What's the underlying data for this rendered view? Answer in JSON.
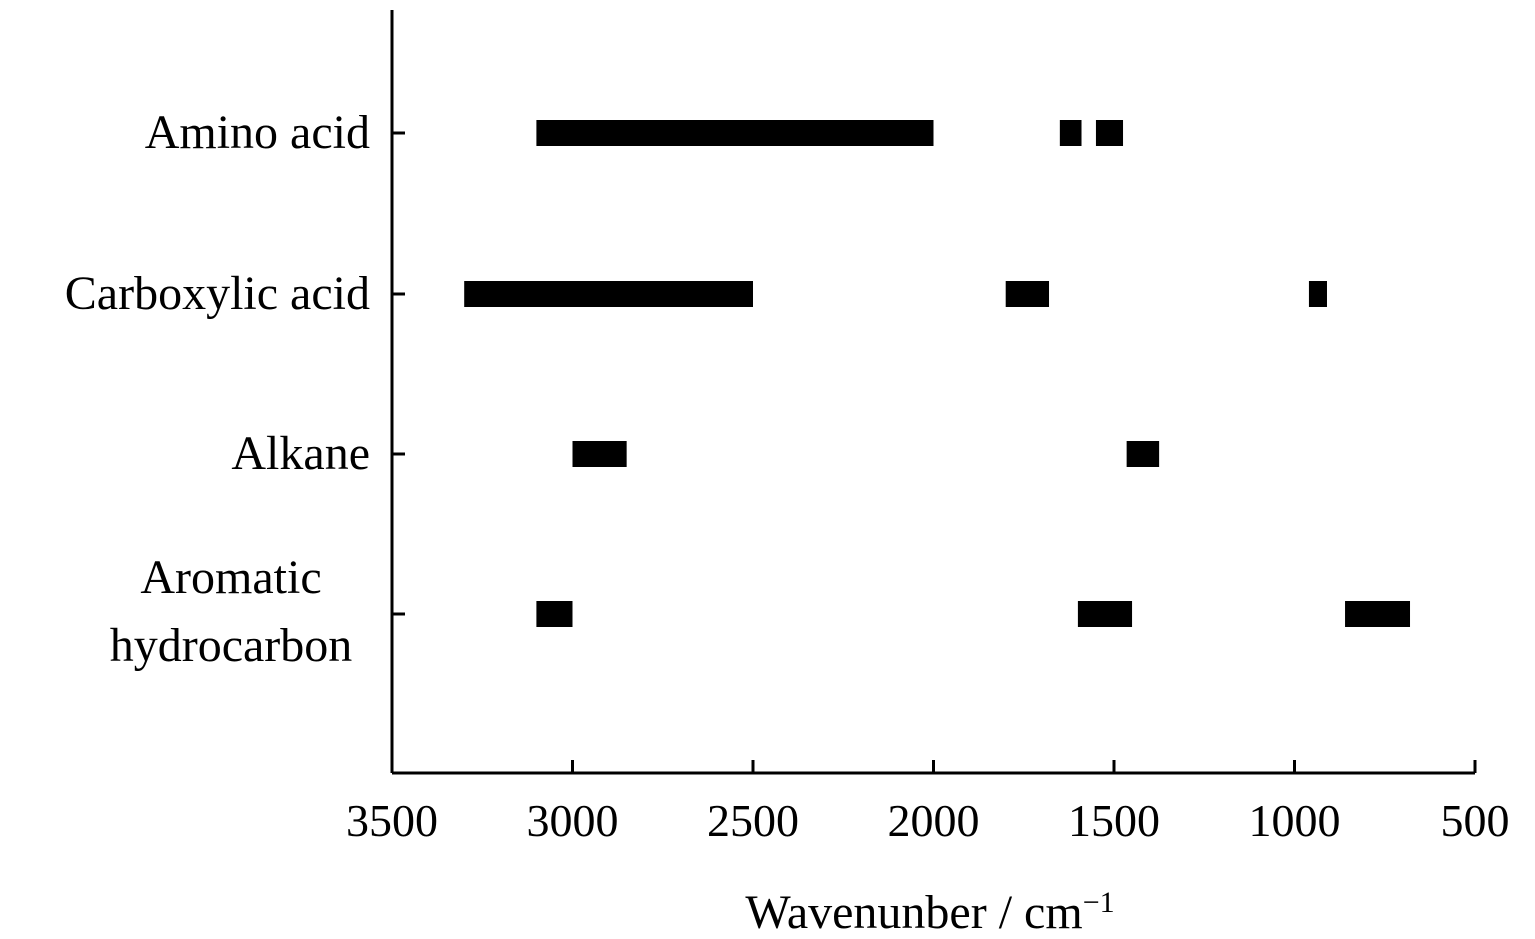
{
  "chart_data": {
    "type": "bar",
    "orientation": "horizontal-range",
    "title": "",
    "xlabel": "Wavenunber / cm",
    "xlabel_superscript": "−1",
    "ylabel": "",
    "xlim": [
      3500,
      500
    ],
    "x_reversed": true,
    "xticks": [
      3500,
      3000,
      2500,
      2000,
      1500,
      1000,
      500
    ],
    "grid": false,
    "legend": "none",
    "bar_color": "#000000",
    "categories": [
      {
        "lines": [
          "Amino acid"
        ],
        "ranges": [
          [
            3100,
            2000
          ],
          [
            1650,
            1590
          ],
          [
            1550,
            1475
          ]
        ]
      },
      {
        "lines": [
          "Carboxylic acid"
        ],
        "ranges": [
          [
            3300,
            2500
          ],
          [
            1800,
            1680
          ],
          [
            960,
            910
          ]
        ]
      },
      {
        "lines": [
          "Alkane"
        ],
        "ranges": [
          [
            3000,
            2850
          ],
          [
            1465,
            1375
          ]
        ]
      },
      {
        "lines": [
          "Aromatic",
          "hydrocarbon"
        ],
        "ranges": [
          [
            3100,
            3000
          ],
          [
            1600,
            1450
          ],
          [
            860,
            680
          ]
        ]
      }
    ]
  }
}
